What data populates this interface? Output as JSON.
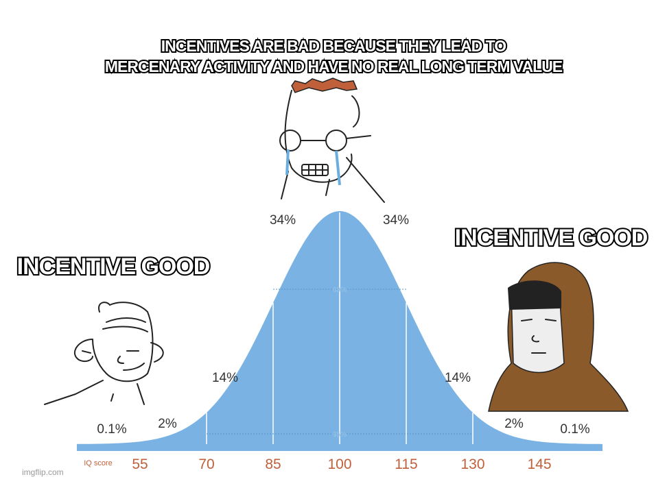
{
  "captions": {
    "top": [
      "INCENTIVES ARE BAD BECAUSE THEY LEAD TO",
      "MERCENARY ACTIVITY AND HAVE NO REAL LONG TERM VALUE"
    ],
    "left": "INCENTIVE GOOD",
    "right": "INCENTIVE GOOD"
  },
  "percent_labels": [
    "0.1%",
    "2%",
    "14%",
    "34%",
    "34%",
    "14%",
    "2%",
    "0.1%"
  ],
  "inner_labels": [
    "68%",
    "95%"
  ],
  "axis": {
    "label": "IQ score",
    "scores": [
      "55",
      "70",
      "85",
      "100",
      "115",
      "130",
      "145"
    ]
  },
  "watermark": "imgflip.com"
}
